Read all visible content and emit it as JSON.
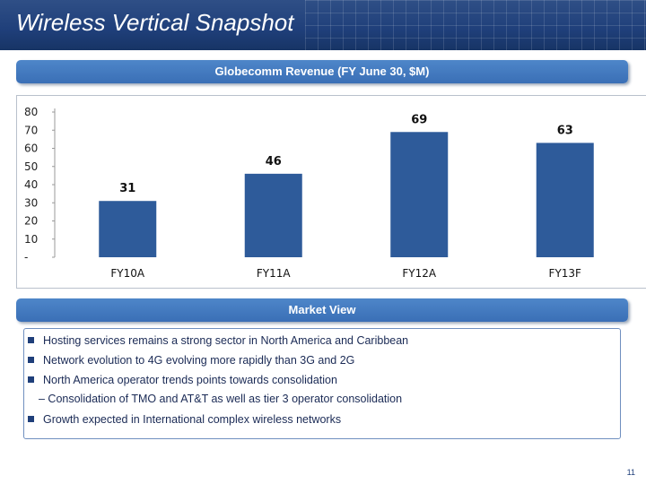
{
  "header": {
    "title": "Wireless Vertical Snapshot"
  },
  "revenue_section": {
    "heading": "Globecomm Revenue (FY June 30, $M)"
  },
  "chart_data": {
    "type": "bar",
    "categories": [
      "FY10A",
      "FY11A",
      "FY12A",
      "FY13F"
    ],
    "values": [
      31,
      46,
      69,
      63
    ],
    "title": "Globecomm Revenue (FY June 30, $M)",
    "xlabel": "",
    "ylabel": "",
    "ylim": [
      0,
      80
    ],
    "yticks": [
      "-",
      "10",
      "20",
      "30",
      "40",
      "50",
      "60",
      "70",
      "80"
    ],
    "bar_color": "#2e5b9a",
    "grid": false,
    "legend": "none"
  },
  "market_view": {
    "heading": "Market View",
    "bullets": [
      "Hosting services remains a strong sector in North America and Caribbean",
      "Network evolution to 4G evolving more rapidly than 3G and 2G",
      "North America operator trends points towards consolidation",
      "Growth expected in International complex wireless networks"
    ],
    "sub_bullet": "– Consolidation of TMO and AT&T as well as tier 3 operator consolidation"
  },
  "footer": {
    "page_number": "11"
  }
}
